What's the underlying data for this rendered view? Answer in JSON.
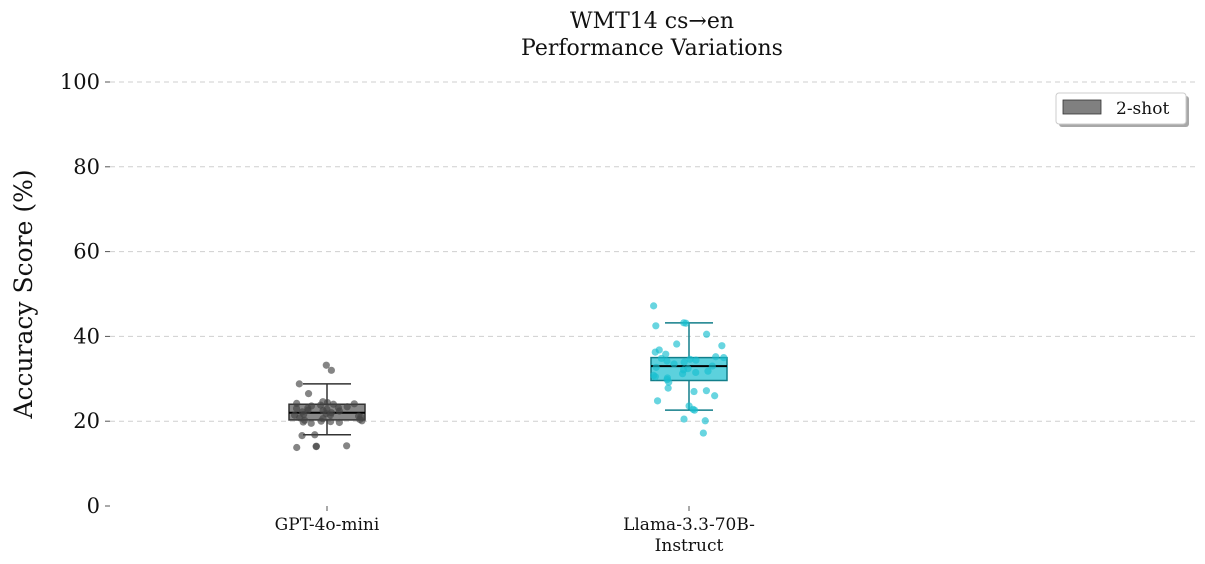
{
  "chart_data": {
    "type": "box",
    "title": [
      "WMT14 cs→en",
      "Performance Variations"
    ],
    "xlabel": "",
    "ylabel": "Accuracy Score (%)",
    "ylim": [
      0,
      100
    ],
    "yticks": [
      0,
      20,
      40,
      60,
      80,
      100
    ],
    "grid": "y-dashed",
    "legend": {
      "position": "top-right",
      "entries": [
        {
          "label": "2-shot",
          "color": "#808080"
        }
      ]
    },
    "categories": [
      "GPT-4o-mini",
      "Llama-3.3-70B-\nInstruct"
    ],
    "boxes": [
      {
        "name": "GPT-4o-mini",
        "color": "#555555",
        "point_color": "#444444",
        "q1": 20.3,
        "median": 22.0,
        "q3": 24.0,
        "whisker_low": 16.8,
        "whisker_high": 28.8,
        "points": [
          33.2,
          32.0,
          28.8,
          26.5,
          24.6,
          24.4,
          24.2,
          24.1,
          24.0,
          23.8,
          23.6,
          23.4,
          23.2,
          23.0,
          22.8,
          22.6,
          22.4,
          22.2,
          22.0,
          21.8,
          21.6,
          21.4,
          21.2,
          21.0,
          20.8,
          20.6,
          20.4,
          20.2,
          20.0,
          19.9,
          19.7,
          19.5,
          19.8,
          20.1,
          22.5,
          23.1,
          21.5,
          16.8,
          16.6,
          14.2,
          14.1,
          14.0,
          13.8
        ]
      },
      {
        "name": "Llama-3.3-70B-Instruct",
        "color": "#17becf",
        "point_color": "#17becf",
        "q1": 29.6,
        "median": 33.0,
        "q3": 35.0,
        "whisker_low": 22.6,
        "whisker_high": 43.2,
        "points": [
          47.2,
          43.2,
          43.1,
          42.5,
          40.5,
          38.2,
          37.8,
          36.8,
          36.3,
          35.8,
          35.2,
          35.0,
          34.8,
          34.6,
          34.4,
          34.2,
          33.9,
          33.5,
          33.0,
          32.7,
          32.4,
          32.1,
          31.8,
          31.5,
          31.2,
          30.8,
          30.5,
          30.2,
          29.8,
          29.2,
          27.8,
          27.2,
          27.0,
          26.0,
          24.8,
          23.6,
          22.8,
          22.6,
          20.5,
          20.1,
          17.2
        ]
      }
    ]
  }
}
